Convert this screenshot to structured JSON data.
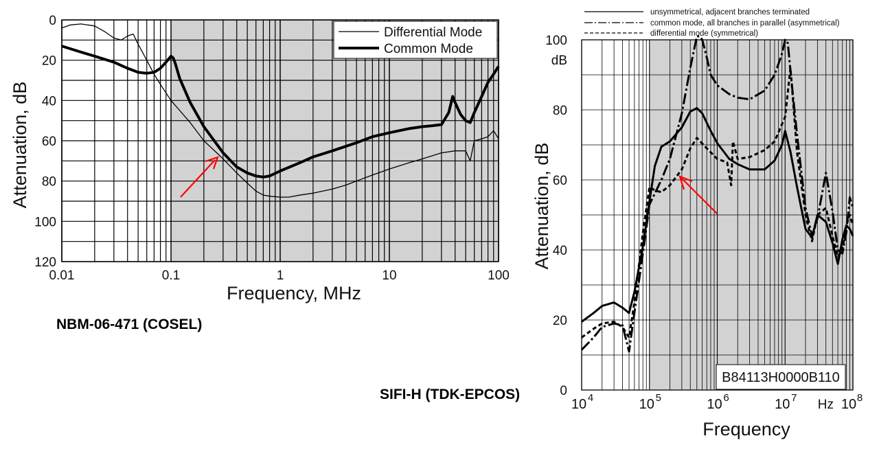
{
  "chart_data": [
    {
      "type": "line",
      "caption": "NBM-06-471 (COSEL)",
      "xlabel": "Frequency, MHz",
      "ylabel": "Attenuation, dB",
      "xscale": "log",
      "xlim": [
        0.01,
        100
      ],
      "ylim": [
        0,
        120
      ],
      "y_inverted": true,
      "x_ticks": [
        "0.01",
        "0.1",
        "1",
        "10",
        "100"
      ],
      "y_ticks": [
        "0",
        "20",
        "40",
        "60",
        "80",
        "100",
        "120"
      ],
      "shaded_band": [
        0.1,
        100
      ],
      "grid": true,
      "legend_position": "top-right",
      "series": [
        {
          "name": "Differential Mode",
          "line_width": "thin",
          "x": [
            0.01,
            0.012,
            0.015,
            0.02,
            0.025,
            0.03,
            0.035,
            0.04,
            0.045,
            0.05,
            0.06,
            0.07,
            0.08,
            0.1,
            0.15,
            0.2,
            0.3,
            0.4,
            0.5,
            0.6,
            0.7,
            0.8,
            1.0,
            1.2,
            1.5,
            2,
            3,
            4,
            5,
            7,
            10,
            15,
            20,
            30,
            40,
            45,
            50,
            55,
            60,
            70,
            80,
            90,
            100
          ],
          "y": [
            4,
            2.5,
            2,
            3,
            6,
            9,
            10,
            8,
            7,
            12,
            20,
            27,
            32,
            40,
            51,
            60,
            69,
            76,
            81,
            85,
            87,
            87.5,
            88,
            88,
            87,
            86,
            84,
            82,
            80,
            77,
            74,
            71,
            69,
            66,
            65,
            65,
            65,
            70,
            60,
            59,
            58,
            55,
            59
          ]
        },
        {
          "name": "Common Mode",
          "line_width": "thick",
          "x": [
            0.01,
            0.015,
            0.02,
            0.03,
            0.04,
            0.05,
            0.06,
            0.07,
            0.08,
            0.09,
            0.1,
            0.105,
            0.11,
            0.12,
            0.15,
            0.2,
            0.3,
            0.4,
            0.5,
            0.6,
            0.7,
            0.8,
            1.0,
            1.5,
            2,
            3,
            5,
            7,
            10,
            15,
            20,
            25,
            30,
            35,
            38,
            40,
            45,
            50,
            55,
            60,
            70,
            80,
            90,
            100
          ],
          "y": [
            13,
            16,
            18,
            21,
            24,
            26,
            26.5,
            26,
            24,
            21,
            18,
            19,
            22,
            29,
            41,
            53,
            66,
            73,
            76,
            77.5,
            78,
            77.5,
            75,
            71,
            68,
            65,
            61,
            58,
            56,
            54,
            53,
            52.5,
            52,
            46,
            38,
            41,
            47,
            50,
            51,
            46,
            38,
            31,
            27,
            23
          ]
        }
      ]
    },
    {
      "type": "line",
      "caption": "SIFI-H (TDK-EPCOS)",
      "xlabel": "Frequency",
      "ylabel": "Attenuation, dB",
      "y_unit": "dB",
      "x_unit": "Hz",
      "xscale": "log",
      "xlim": [
        10000,
        100000000
      ],
      "ylim": [
        0,
        100
      ],
      "x_ticks": [
        "10^4",
        "10^5",
        "10^6",
        "10^7",
        "10^8"
      ],
      "y_ticks": [
        "0",
        "20",
        "40",
        "60",
        "80",
        "100"
      ],
      "shaded_band": [
        100000,
        100000000
      ],
      "grid": true,
      "legend_position": "top",
      "part_number": "B84113H0000B110",
      "series": [
        {
          "name": "unsymmetrical, adjacent branches terminated",
          "dash": "solid",
          "x": [
            10000,
            15000,
            20000,
            30000,
            40000,
            50000,
            60000,
            80000,
            100000,
            120000,
            150000,
            200000,
            300000,
            400000,
            500000,
            600000,
            800000,
            1000000,
            1500000,
            2000000,
            3000000,
            5000000,
            7000000,
            9000000,
            10000000,
            12000000,
            15000000,
            20000000,
            25000000,
            30000000,
            40000000,
            50000000,
            60000000,
            70000000,
            80000000,
            90000000,
            100000000
          ],
          "y": [
            19.5,
            22,
            24,
            25,
            23.5,
            22,
            28,
            41,
            54,
            64,
            69.5,
            71,
            75,
            79.5,
            80.5,
            79,
            74,
            70.5,
            66,
            64.5,
            63,
            63,
            65.5,
            70,
            74,
            68,
            58,
            46,
            43.5,
            50,
            48,
            42,
            36,
            43,
            47,
            46,
            44
          ]
        },
        {
          "name": "common mode, all branches in parallel (asymmetrical)",
          "dash": "dash-dot",
          "x": [
            10000,
            15000,
            20000,
            30000,
            40000,
            50000,
            60000,
            80000,
            100000,
            150000,
            200000,
            300000,
            400000,
            500000,
            550000,
            600000,
            700000,
            800000,
            1000000,
            1500000,
            2000000,
            3000000,
            5000000,
            7000000,
            9000000,
            10000000,
            11000000,
            12000000,
            15000000,
            20000000,
            25000000,
            30000000,
            40000000,
            50000000,
            60000000,
            70000000,
            80000000,
            90000000,
            100000000
          ],
          "y": [
            11.5,
            15,
            18,
            19,
            18.5,
            11,
            22,
            39,
            53,
            60,
            66,
            79,
            92,
            102,
            102,
            100,
            95,
            90,
            87,
            84.5,
            83.5,
            83,
            85.5,
            90,
            96,
            100,
            99,
            91,
            73,
            52,
            44,
            49,
            62,
            51,
            40,
            39,
            45,
            55,
            52
          ]
        },
        {
          "name": "differential mode (symmetrical)",
          "dash": "dashed",
          "x": [
            10000,
            15000,
            20000,
            30000,
            40000,
            50000,
            60000,
            80000,
            100000,
            120000,
            150000,
            200000,
            300000,
            400000,
            500000,
            700000,
            1000000,
            1400000,
            1600000,
            1700000,
            2000000,
            3000000,
            5000000,
            7000000,
            10000000,
            12000000,
            15000000,
            20000000,
            25000000,
            30000000,
            40000000,
            50000000,
            60000000,
            70000000,
            80000000,
            90000000,
            100000000
          ],
          "y": [
            15,
            17.5,
            19,
            19.5,
            18,
            15,
            25,
            45,
            58,
            57,
            56.5,
            58.5,
            63,
            69,
            72,
            69,
            66,
            65,
            58.5,
            71,
            66,
            66.5,
            68.5,
            71,
            78,
            92,
            68,
            50,
            42.5,
            50,
            52,
            44,
            38,
            40,
            47,
            50,
            47
          ]
        }
      ]
    }
  ],
  "annotations": {
    "left_arrow_color": "#ff0000",
    "right_arrow_color": "#ff0000"
  },
  "colors": {
    "shade": "#d2d2d2",
    "grid": "#000000",
    "lines": "#000000"
  }
}
